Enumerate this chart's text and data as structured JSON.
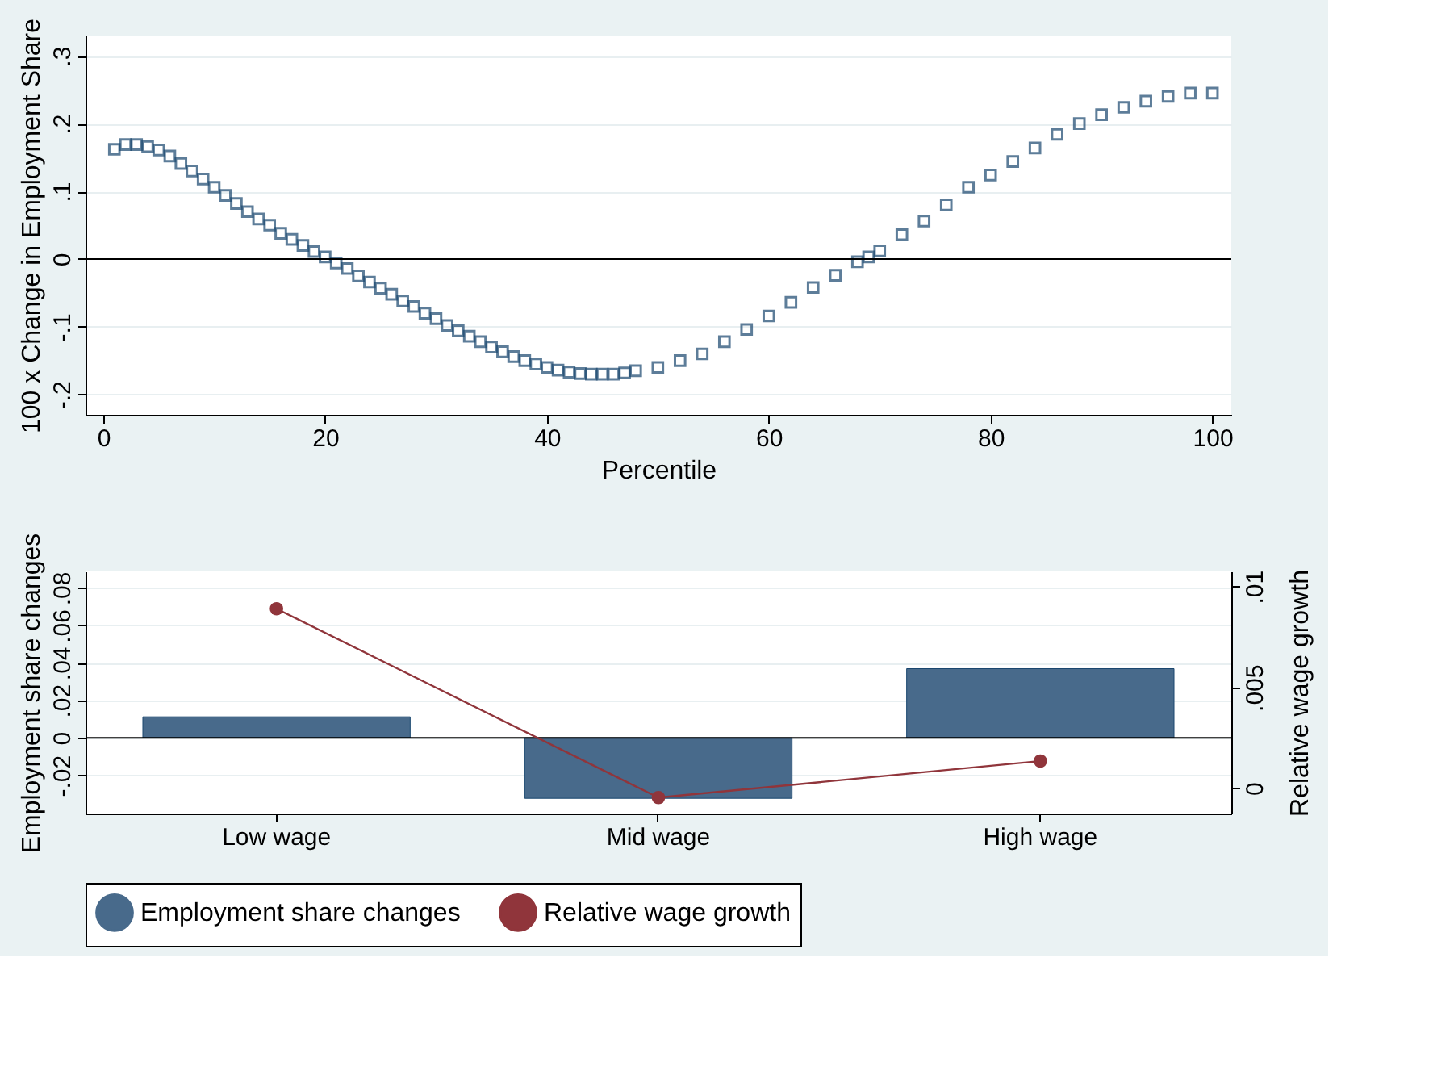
{
  "chart_data": [
    {
      "type": "scatter",
      "ylabel": "100 x Change in Employment Share",
      "xlabel": "Percentile",
      "marker": "square",
      "grid": "y",
      "x": [
        1,
        2,
        3,
        4,
        5,
        6,
        7,
        8,
        9,
        10,
        11,
        12,
        13,
        14,
        15,
        16,
        17,
        18,
        19,
        20,
        21,
        22,
        23,
        24,
        25,
        26,
        27,
        28,
        29,
        30,
        31,
        32,
        33,
        34,
        35,
        36,
        37,
        38,
        39,
        40,
        41,
        42,
        43,
        44,
        45,
        46,
        47,
        48,
        50,
        52,
        54,
        56,
        58,
        60,
        62,
        64,
        66,
        68,
        69,
        70,
        72,
        74,
        76,
        78,
        80,
        82,
        84,
        86,
        88,
        90,
        92,
        94,
        96,
        98,
        100
      ],
      "series": [
        {
          "color": "#1a476f",
          "values": [
            0.162,
            0.169,
            0.169,
            0.166,
            0.161,
            0.152,
            0.141,
            0.13,
            0.118,
            0.106,
            0.094,
            0.082,
            0.07,
            0.059,
            0.05,
            0.038,
            0.029,
            0.02,
            0.011,
            0.003,
            -0.006,
            -0.014,
            -0.025,
            -0.034,
            -0.043,
            -0.052,
            -0.062,
            -0.07,
            -0.08,
            -0.088,
            -0.098,
            -0.106,
            -0.114,
            -0.122,
            -0.13,
            -0.137,
            -0.144,
            -0.15,
            -0.155,
            -0.16,
            -0.164,
            -0.167,
            -0.169,
            -0.17,
            -0.17,
            -0.17,
            -0.168,
            -0.165,
            -0.16,
            -0.15,
            -0.14,
            -0.122,
            -0.104,
            -0.084,
            -0.064,
            -0.042,
            -0.024,
            -0.004,
            0.003,
            0.012,
            0.036,
            0.056,
            0.08,
            0.106,
            0.124,
            0.144,
            0.164,
            0.184,
            0.2,
            0.213,
            0.224,
            0.233,
            0.24,
            0.245,
            0.245
          ]
        }
      ],
      "xlim": [
        -1.6,
        101.7
      ],
      "xticks": [
        0,
        20,
        40,
        60,
        80,
        100
      ],
      "ylim": [
        -0.23,
        0.33
      ],
      "yticks": [
        {
          "value": -0.2,
          "label": "-.2"
        },
        {
          "value": -0.1,
          "label": "-.1"
        },
        0,
        {
          "value": 0.1,
          "label": ".1"
        },
        {
          "value": 0.2,
          "label": ".2"
        },
        {
          "value": 0.3,
          "label": ".3"
        }
      ],
      "ref_lines": [
        {
          "axis": "y",
          "value": 0,
          "color": "#000000"
        }
      ]
    },
    {
      "type": "bar",
      "ylabel": "Employment share changes",
      "y2label": "Relative wage growth",
      "grid": "y",
      "legend": "bottom",
      "categories": [
        "Low wage",
        "Mid wage",
        "High wage"
      ],
      "series": [
        {
          "name": "Employment share changes",
          "type": "bar",
          "color": "#486a8b",
          "values": [
            0.0112,
            -0.0323,
            0.0369
          ]
        },
        {
          "name": "Relative wage growth",
          "type": "line",
          "axis": "y2",
          "marker": "circle",
          "color": "#90353b",
          "values": [
            0.0089,
            -0.00046,
            0.00135
          ]
        }
      ],
      "ylim": [
        -0.0404,
        0.0888
      ],
      "yticks": [
        {
          "value": -0.02,
          "label": "-.02"
        },
        0,
        {
          "value": 0.02,
          "label": ".02"
        },
        {
          "value": 0.04,
          "label": ".04"
        },
        {
          "value": 0.06,
          "label": ".06"
        },
        {
          "value": 0.08,
          "label": ".08"
        }
      ],
      "y2lim": [
        -0.00125,
        0.01075
      ],
      "y2ticks": [
        0,
        {
          "value": 0.005,
          "label": ".005"
        },
        {
          "value": 0.01,
          "label": ".01"
        }
      ],
      "ref_lines": [
        {
          "axis": "y",
          "value": 0,
          "color": "#000000"
        }
      ]
    }
  ]
}
